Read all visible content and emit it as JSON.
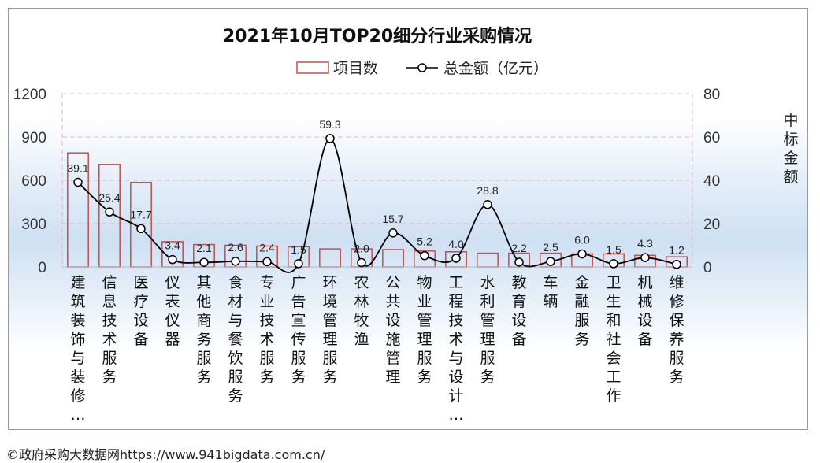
{
  "chart_data": {
    "type": "bar+line",
    "title": "2021年10月TOP20细分行业采购情况",
    "categories": [
      "建筑装饰与装修…",
      "信息技术服务",
      "医疗设备",
      "仪表仪器",
      "其他商务服务",
      "食材与餐饮服务",
      "专业技术服务",
      "广告宣传服务",
      "环境管理服务",
      "农林牧渔",
      "公共设施管理",
      "物业管理服务",
      "工程技术与设计…",
      "水利管理服务",
      "教育设备",
      "车辆",
      "金融服务",
      "卫生和社会工作",
      "机械设备",
      "维修保养服务"
    ],
    "series": [
      {
        "name": "项目数",
        "type": "bar",
        "axis": "left",
        "color": "#c0504d",
        "values": [
          790,
          710,
          585,
          175,
          155,
          150,
          145,
          140,
          125,
          125,
          120,
          110,
          105,
          95,
          95,
          95,
          90,
          90,
          80,
          70
        ]
      },
      {
        "name": "总金额（亿元）",
        "type": "line",
        "axis": "right",
        "smooth": true,
        "color": "#000000",
        "values": [
          39.1,
          25.4,
          17.7,
          3.4,
          2.1,
          2.6,
          2.4,
          1.5,
          59.3,
          2.0,
          15.7,
          5.2,
          4.0,
          28.8,
          2.2,
          2.5,
          6.0,
          1.5,
          4.3,
          1.2
        ]
      }
    ],
    "y_left": {
      "ticks": [
        "0",
        "300",
        "600",
        "900",
        "1200"
      ],
      "ylim": [
        0,
        1200
      ]
    },
    "y_right": {
      "label": "中标金额",
      "ticks": [
        "0",
        "20",
        "40",
        "60",
        "80"
      ],
      "ylim": [
        0,
        80
      ]
    },
    "grid": "dashed horizontal",
    "legend": "top-center",
    "colors": {
      "bar": "#c0504d",
      "line": "#000000",
      "grid": "#e8b4b8"
    }
  },
  "footer": {
    "source": "©政府采购大数据网https://www.941bigdata.com.cn/"
  }
}
